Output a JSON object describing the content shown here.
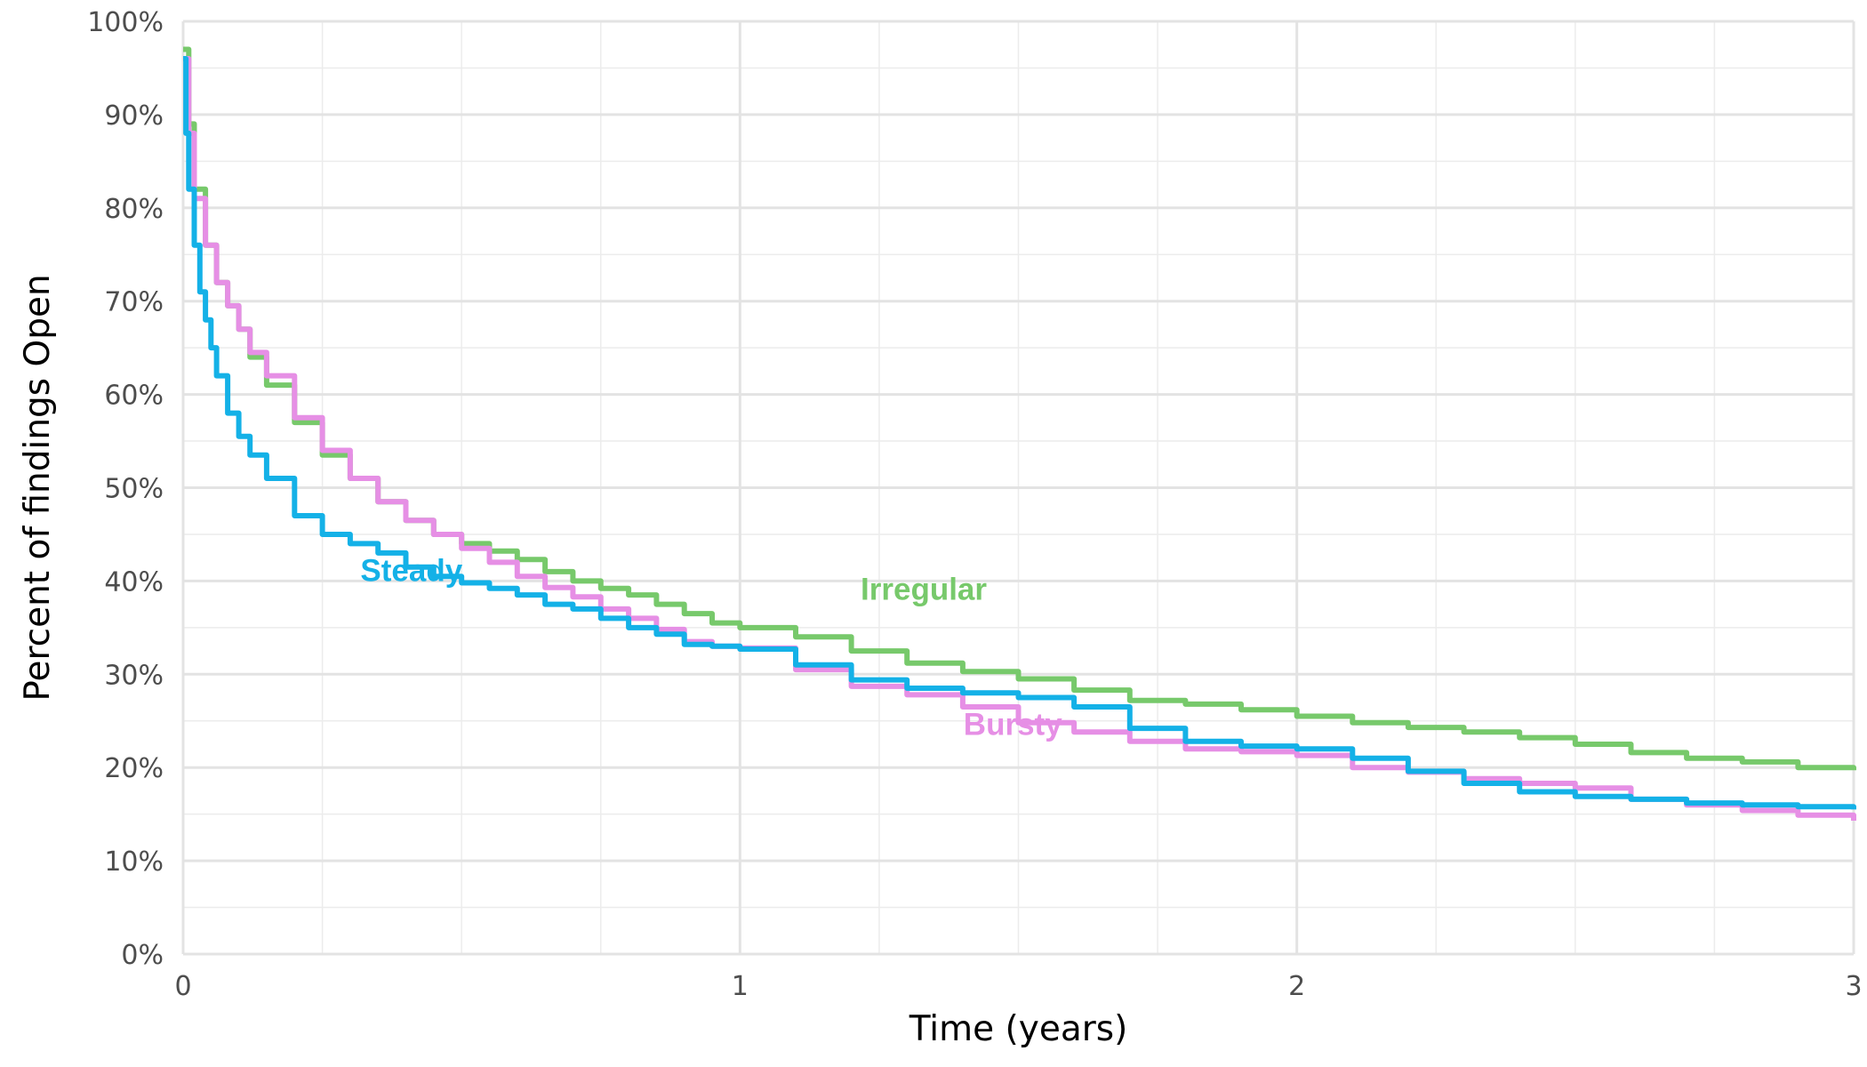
{
  "chart_data": {
    "type": "line",
    "title": "",
    "xlabel": "Time (years)",
    "ylabel": "Percent of findings Open",
    "xlim": [
      0,
      3
    ],
    "ylim": [
      0,
      100
    ],
    "x_ticks": [
      "0",
      "1",
      "2",
      "3"
    ],
    "y_ticks": [
      "0%",
      "10%",
      "20%",
      "30%",
      "40%",
      "50%",
      "60%",
      "70%",
      "80%",
      "90%",
      "100%"
    ],
    "grid": true,
    "legend": "none",
    "series": [
      {
        "name": "Irregular",
        "color": "#77C96B",
        "x": [
          0,
          0.01,
          0.02,
          0.04,
          0.06,
          0.08,
          0.1,
          0.12,
          0.15,
          0.2,
          0.25,
          0.3,
          0.35,
          0.4,
          0.45,
          0.5,
          0.55,
          0.6,
          0.65,
          0.7,
          0.75,
          0.8,
          0.85,
          0.9,
          0.95,
          1.0,
          1.1,
          1.2,
          1.3,
          1.4,
          1.5,
          1.6,
          1.7,
          1.8,
          1.9,
          2.0,
          2.1,
          2.2,
          2.3,
          2.4,
          2.5,
          2.6,
          2.7,
          2.8,
          2.9,
          3.0
        ],
        "y": [
          97,
          89,
          82,
          76,
          72,
          69.5,
          67,
          64,
          61,
          57,
          53.5,
          51,
          48.5,
          46.5,
          45,
          44,
          43.2,
          42.3,
          41,
          40,
          39.2,
          38.5,
          37.5,
          36.5,
          35.5,
          35,
          34,
          32.5,
          31.2,
          30.3,
          29.5,
          28.3,
          27.2,
          26.8,
          26.2,
          25.5,
          24.8,
          24.3,
          23.8,
          23.2,
          22.5,
          21.6,
          21,
          20.6,
          20,
          19.7
        ]
      },
      {
        "name": "Bursty",
        "color": "#E68FE5",
        "x": [
          0,
          0.01,
          0.02,
          0.04,
          0.06,
          0.08,
          0.1,
          0.12,
          0.15,
          0.2,
          0.25,
          0.3,
          0.35,
          0.4,
          0.45,
          0.5,
          0.55,
          0.6,
          0.65,
          0.7,
          0.75,
          0.8,
          0.85,
          0.9,
          0.95,
          1.0,
          1.1,
          1.2,
          1.3,
          1.4,
          1.5,
          1.6,
          1.7,
          1.8,
          1.9,
          2.0,
          2.1,
          2.2,
          2.3,
          2.4,
          2.5,
          2.6,
          2.7,
          2.8,
          2.9,
          3.0
        ],
        "y": [
          96,
          88,
          81,
          76,
          72,
          69.5,
          67,
          64.5,
          62,
          57.5,
          54,
          51,
          48.5,
          46.5,
          45,
          43.5,
          42,
          40.5,
          39.3,
          38.3,
          37,
          36,
          34.8,
          33.5,
          33,
          32.8,
          30.5,
          28.7,
          27.8,
          26.5,
          24.8,
          23.8,
          22.8,
          22,
          21.7,
          21.3,
          20,
          19.5,
          18.8,
          18.3,
          17.8,
          16.6,
          16,
          15.4,
          14.9,
          14.3
        ]
      },
      {
        "name": "Steady",
        "color": "#14B1E7",
        "x": [
          0,
          0.005,
          0.01,
          0.02,
          0.03,
          0.04,
          0.05,
          0.06,
          0.08,
          0.1,
          0.12,
          0.15,
          0.2,
          0.25,
          0.3,
          0.35,
          0.4,
          0.45,
          0.5,
          0.55,
          0.6,
          0.65,
          0.7,
          0.75,
          0.8,
          0.85,
          0.9,
          0.95,
          1.0,
          1.1,
          1.2,
          1.3,
          1.4,
          1.5,
          1.6,
          1.7,
          1.8,
          1.9,
          2.0,
          2.1,
          2.2,
          2.3,
          2.4,
          2.5,
          2.6,
          2.7,
          2.8,
          2.9,
          3.0
        ],
        "y": [
          96,
          88,
          82,
          76,
          71,
          68,
          65,
          62,
          58,
          55.5,
          53.5,
          51,
          47,
          45,
          44,
          43,
          41.5,
          40.5,
          39.8,
          39.2,
          38.5,
          37.5,
          37,
          36,
          35,
          34.3,
          33.2,
          33,
          32.7,
          31,
          29.4,
          28.5,
          28,
          27.5,
          26.5,
          24.2,
          22.8,
          22.3,
          22,
          21,
          19.6,
          18.3,
          17.4,
          16.9,
          16.6,
          16.2,
          16,
          15.8,
          15.5
        ]
      }
    ],
    "annotations": [
      {
        "text": "Steady",
        "x": 0.41,
        "y": 40
      },
      {
        "text": "Irregular",
        "x": 1.33,
        "y": 38
      },
      {
        "text": "Bursty",
        "x": 1.49,
        "y": 23.5
      }
    ]
  }
}
